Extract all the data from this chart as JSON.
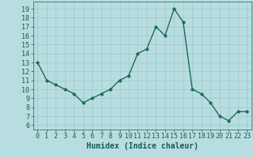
{
  "x": [
    0,
    1,
    2,
    3,
    4,
    5,
    6,
    7,
    8,
    9,
    10,
    11,
    12,
    13,
    14,
    15,
    16,
    17,
    18,
    19,
    20,
    21,
    22,
    23
  ],
  "y": [
    13,
    11,
    10.5,
    10,
    9.5,
    8.5,
    9,
    9.5,
    10,
    11,
    11.5,
    14,
    14.5,
    17,
    16,
    19,
    17.5,
    10,
    9.5,
    8.5,
    7,
    6.5,
    7.5,
    7.5
  ],
  "xlabel": "Humidex (Indice chaleur)",
  "yticks": [
    6,
    7,
    8,
    9,
    10,
    11,
    12,
    13,
    14,
    15,
    16,
    17,
    18,
    19
  ],
  "ylim": [
    5.5,
    19.8
  ],
  "xlim": [
    -0.5,
    23.5
  ],
  "xticks": [
    0,
    1,
    2,
    3,
    4,
    5,
    6,
    7,
    8,
    9,
    10,
    11,
    12,
    13,
    14,
    15,
    16,
    17,
    18,
    19,
    20,
    21,
    22,
    23
  ],
  "line_color": "#1a6b5a",
  "marker_color": "#1a6b5a",
  "bg_color": "#b8dde0",
  "grid_color": "#9dc8cc",
  "tick_label_color": "#1a5c4e",
  "xlabel_color": "#1a5c4e",
  "xlabel_fontsize": 7,
  "tick_fontsize": 6,
  "line_width": 1.0,
  "marker_size": 2.0
}
